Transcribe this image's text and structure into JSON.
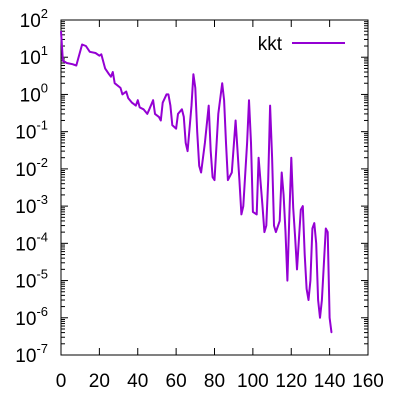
{
  "chart_data": {
    "type": "line",
    "title": "",
    "xlabel": "",
    "ylabel": "",
    "xlim": [
      0,
      160
    ],
    "ylim": [
      1e-07,
      100
    ],
    "y_scale": "log",
    "grid": false,
    "legend_position": "top-right",
    "x_ticks": [
      0,
      20,
      40,
      60,
      80,
      100,
      120,
      140,
      160
    ],
    "y_ticks": [
      {
        "value": 1e-07,
        "base": "10",
        "exp": "-7"
      },
      {
        "value": 1e-06,
        "base": "10",
        "exp": "-6"
      },
      {
        "value": 1e-05,
        "base": "10",
        "exp": "-5"
      },
      {
        "value": 0.0001,
        "base": "10",
        "exp": "-4"
      },
      {
        "value": 0.001,
        "base": "10",
        "exp": "-3"
      },
      {
        "value": 0.01,
        "base": "10",
        "exp": "-2"
      },
      {
        "value": 0.1,
        "base": "10",
        "exp": "-1"
      },
      {
        "value": 1,
        "base": "10",
        "exp": "0"
      },
      {
        "value": 10,
        "base": "10",
        "exp": "1"
      },
      {
        "value": 100,
        "base": "10",
        "exp": "2"
      }
    ],
    "series": [
      {
        "name": "kkt",
        "color": "#9400d3",
        "points": [
          [
            0,
            50
          ],
          [
            1,
            8
          ],
          [
            3,
            7
          ],
          [
            6,
            6.5
          ],
          [
            8,
            6
          ],
          [
            11,
            22
          ],
          [
            13,
            20
          ],
          [
            15,
            14
          ],
          [
            18,
            13
          ],
          [
            20,
            11
          ],
          [
            21,
            12
          ],
          [
            23,
            5
          ],
          [
            25,
            3.5
          ],
          [
            26,
            3
          ],
          [
            27,
            4
          ],
          [
            28,
            2
          ],
          [
            31,
            1.5
          ],
          [
            32,
            1.0
          ],
          [
            34,
            1.2
          ],
          [
            35,
            0.8
          ],
          [
            37,
            0.6
          ],
          [
            39,
            0.5
          ],
          [
            40,
            0.7
          ],
          [
            41,
            0.45
          ],
          [
            43,
            0.4
          ],
          [
            45,
            0.3
          ],
          [
            46,
            0.4
          ],
          [
            48,
            0.7
          ],
          [
            49,
            0.3
          ],
          [
            51,
            0.25
          ],
          [
            52,
            0.2
          ],
          [
            53,
            0.6
          ],
          [
            55,
            1.0
          ],
          [
            56,
            1.0
          ],
          [
            57,
            0.5
          ],
          [
            58,
            0.15
          ],
          [
            60,
            0.12
          ],
          [
            61,
            0.3
          ],
          [
            63,
            0.4
          ],
          [
            64,
            0.25
          ],
          [
            65,
            0.05
          ],
          [
            66,
            0.03
          ],
          [
            68,
            0.5
          ],
          [
            69,
            3.5
          ],
          [
            70,
            1.5
          ],
          [
            71,
            0.1
          ],
          [
            72,
            0.012
          ],
          [
            73,
            0.008
          ],
          [
            75,
            0.05
          ],
          [
            77,
            0.5
          ],
          [
            78,
            0.03
          ],
          [
            79,
            0.006
          ],
          [
            80,
            0.005
          ],
          [
            82,
            0.3
          ],
          [
            84,
            2.0
          ],
          [
            85,
            0.7
          ],
          [
            86,
            0.05
          ],
          [
            87,
            0.005
          ],
          [
            89,
            0.008
          ],
          [
            91,
            0.2
          ],
          [
            93,
            0.005
          ],
          [
            94,
            0.0006
          ],
          [
            95,
            0.001
          ],
          [
            97,
            0.05
          ],
          [
            98,
            0.7
          ],
          [
            99,
            0.05
          ],
          [
            100,
            0.0007
          ],
          [
            102,
            0.0006
          ],
          [
            103,
            0.02
          ],
          [
            105,
            0.001
          ],
          [
            106,
            0.0002
          ],
          [
            107,
            0.0003
          ],
          [
            108,
            0.005
          ],
          [
            109,
            0.5
          ],
          [
            110,
            0.02
          ],
          [
            111,
            0.0003
          ],
          [
            112,
            0.0002
          ],
          [
            114,
            0.0004
          ],
          [
            115,
            0.008
          ],
          [
            116,
            0.002
          ],
          [
            117,
            0.0002
          ],
          [
            118,
            1e-05
          ],
          [
            119,
            0.0005
          ],
          [
            120,
            0.02
          ],
          [
            121,
            0.0009
          ],
          [
            122,
            0.00015
          ],
          [
            123,
            2e-05
          ],
          [
            125,
            0.0008
          ],
          [
            126,
            0.001
          ],
          [
            127,
            5e-05
          ],
          [
            128,
            6e-06
          ],
          [
            129,
            3e-06
          ],
          [
            130,
            1e-05
          ],
          [
            131,
            0.00025
          ],
          [
            132,
            0.00035
          ],
          [
            133,
            0.0001
          ],
          [
            134,
            3e-06
          ],
          [
            135,
            1e-06
          ],
          [
            136,
            3e-06
          ],
          [
            138,
            0.00025
          ],
          [
            139,
            0.0002
          ],
          [
            140,
            1e-06
          ],
          [
            141,
            4e-07
          ]
        ]
      }
    ]
  }
}
